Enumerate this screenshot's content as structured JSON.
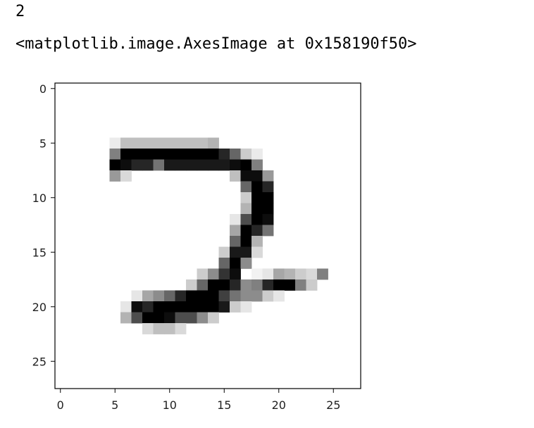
{
  "output": {
    "label_value": "2",
    "repr_text": "<matplotlib.image.AxesImage at 0x158190f50>"
  },
  "chart_data": {
    "type": "heatmap",
    "colormap": "gray_r",
    "title": "",
    "xlabel": "",
    "ylabel": "",
    "xlim": [
      -0.5,
      27.5
    ],
    "ylim": [
      27.5,
      -0.5
    ],
    "xticks": [
      0,
      5,
      10,
      15,
      20,
      25
    ],
    "yticks": [
      0,
      5,
      10,
      15,
      20,
      25
    ],
    "grid": false,
    "pixels": [
      {
        "row": 5,
        "cols": [
          5,
          6,
          7,
          8,
          9,
          10,
          11,
          12,
          13,
          14
        ],
        "values": [
          0.08,
          0.25,
          0.25,
          0.25,
          0.25,
          0.25,
          0.25,
          0.25,
          0.25,
          0.3
        ]
      },
      {
        "row": 6,
        "cols": [
          5,
          6,
          7,
          8,
          9,
          10,
          11,
          12,
          13,
          14,
          15,
          16,
          17
        ],
        "values": [
          0.5,
          1,
          1,
          1,
          1,
          1,
          1,
          1,
          1,
          1,
          0.85,
          0.6,
          0.2
        ]
      },
      {
        "row": 6,
        "cols": [
          18
        ],
        "values": [
          0.08
        ]
      },
      {
        "row": 7,
        "cols": [
          5,
          6,
          7,
          8,
          9,
          10,
          11,
          12,
          13,
          14,
          15,
          16,
          17,
          18
        ],
        "values": [
          1,
          0.95,
          0.85,
          0.85,
          0.55,
          0.9,
          0.9,
          0.9,
          0.9,
          0.9,
          0.9,
          0.95,
          1,
          0.5
        ]
      },
      {
        "row": 8,
        "cols": [
          5,
          6,
          16,
          17,
          18,
          19
        ],
        "values": [
          0.4,
          0.15,
          0.25,
          0.95,
          0.95,
          0.4
        ]
      },
      {
        "row": 9,
        "cols": [
          17,
          18,
          19
        ],
        "values": [
          0.6,
          1,
          0.85
        ]
      },
      {
        "row": 10,
        "cols": [
          17,
          18,
          19
        ],
        "values": [
          0.2,
          1,
          1
        ]
      },
      {
        "row": 11,
        "cols": [
          17,
          18,
          19
        ],
        "values": [
          0.3,
          1,
          1
        ]
      },
      {
        "row": 12,
        "cols": [
          16,
          17,
          18,
          19
        ],
        "values": [
          0.1,
          0.7,
          1,
          0.95
        ]
      },
      {
        "row": 13,
        "cols": [
          16,
          17,
          18,
          19
        ],
        "values": [
          0.35,
          1,
          0.85,
          0.55
        ]
      },
      {
        "row": 14,
        "cols": [
          16,
          17,
          18
        ],
        "values": [
          0.6,
          1,
          0.3
        ]
      },
      {
        "row": 15,
        "cols": [
          15,
          16,
          17,
          18
        ],
        "values": [
          0.2,
          0.9,
          0.9,
          0.15
        ]
      },
      {
        "row": 16,
        "cols": [
          15,
          16,
          17
        ],
        "values": [
          0.6,
          1,
          0.45
        ]
      },
      {
        "row": 17,
        "cols": [
          13,
          14,
          15,
          16,
          18,
          19,
          20,
          21,
          22,
          23,
          24
        ],
        "values": [
          0.2,
          0.45,
          0.8,
          0.95,
          0.05,
          0.1,
          0.35,
          0.3,
          0.2,
          0.15,
          0.5
        ]
      },
      {
        "row": 18,
        "cols": [
          12,
          13,
          14,
          15,
          16,
          17,
          18,
          19,
          20,
          21,
          22,
          23
        ],
        "values": [
          0.2,
          0.6,
          1,
          1,
          0.85,
          0.45,
          0.5,
          0.85,
          1,
          1,
          0.5,
          0.2
        ]
      },
      {
        "row": 19,
        "cols": [
          7,
          8,
          9,
          10,
          11,
          12,
          13,
          14,
          15,
          16,
          17,
          18,
          19,
          20
        ],
        "values": [
          0.1,
          0.35,
          0.45,
          0.6,
          0.85,
          1,
          1,
          1,
          0.75,
          0.55,
          0.45,
          0.45,
          0.2,
          0.1
        ]
      },
      {
        "row": 20,
        "cols": [
          6,
          7,
          8,
          9,
          10,
          11,
          12,
          13,
          14,
          15,
          16,
          17
        ],
        "values": [
          0.1,
          0.95,
          0.85,
          1,
          1,
          1,
          1,
          1,
          1,
          0.9,
          0.2,
          0.1
        ]
      },
      {
        "row": 21,
        "cols": [
          6,
          7,
          8,
          9,
          10,
          11,
          12,
          13,
          14
        ],
        "values": [
          0.3,
          0.7,
          1,
          1,
          0.95,
          0.7,
          0.7,
          0.45,
          0.2
        ]
      },
      {
        "row": 22,
        "cols": [
          8,
          9,
          10,
          11
        ],
        "values": [
          0.15,
          0.25,
          0.25,
          0.15
        ]
      }
    ]
  }
}
